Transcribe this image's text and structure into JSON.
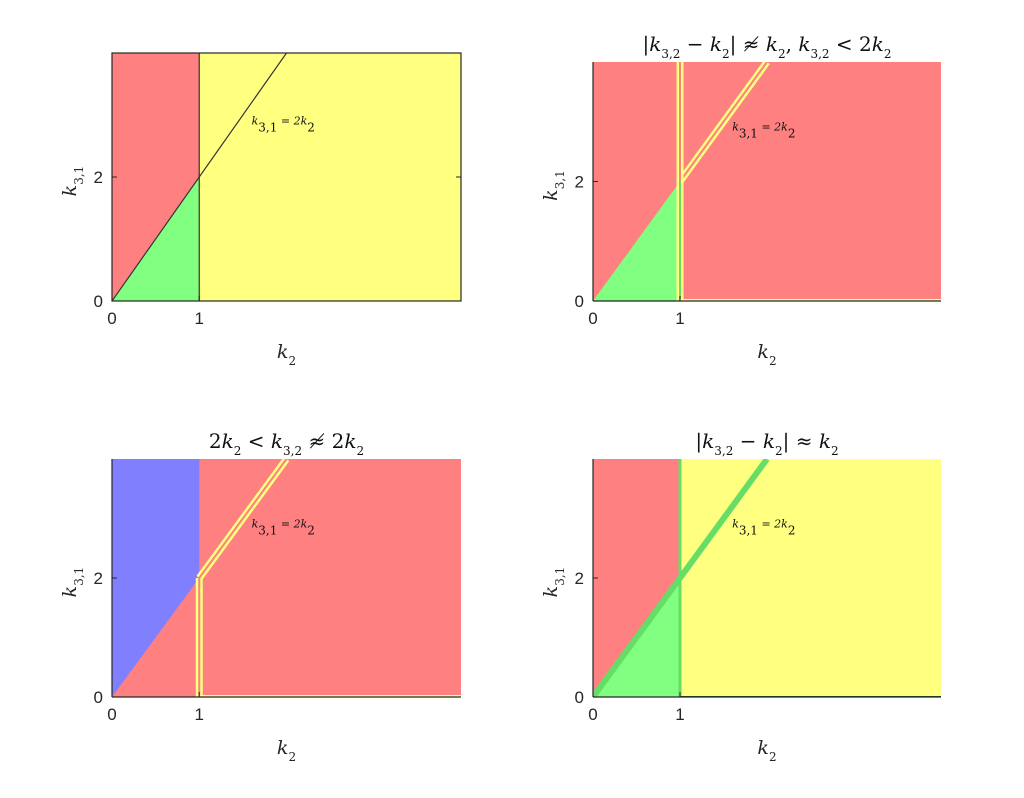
{
  "chart_data": [
    {
      "type": "area",
      "title": "",
      "xlabel": "k2",
      "ylabel": "k3,1",
      "xlim": [
        0,
        4
      ],
      "ylim": [
        0,
        4
      ],
      "xticks": [
        0,
        1
      ],
      "yticks": [
        0,
        2
      ],
      "annotation": "k3,1 = 2k2",
      "colors": {
        "red": "#ff8080",
        "green": "#80ff80",
        "yellow": "#ffff80",
        "blue": "#8080ff"
      },
      "regions": [
        {
          "color": "red",
          "polygon": [
            [
              0,
              0
            ],
            [
              1,
              2
            ],
            [
              1,
              4
            ],
            [
              0,
              4
            ]
          ]
        },
        {
          "color": "green",
          "polygon": [
            [
              0,
              0
            ],
            [
              1,
              0
            ],
            [
              1,
              2
            ]
          ]
        },
        {
          "color": "yellow",
          "polygon": [
            [
              1,
              0
            ],
            [
              4,
              0
            ],
            [
              4,
              4
            ],
            [
              1,
              4
            ]
          ]
        }
      ],
      "lines": [
        {
          "from": [
            0,
            0
          ],
          "to": [
            2,
            4
          ],
          "color": "#333333"
        },
        {
          "from": [
            1,
            0
          ],
          "to": [
            1,
            4
          ],
          "color": "#333333"
        }
      ],
      "boxed": true
    },
    {
      "type": "area",
      "title": "|k3,2 − k2| ≉ k2, k3,2 < 2k2",
      "xlabel": "k2",
      "ylabel": "k3,1",
      "xlim": [
        0,
        4
      ],
      "ylim": [
        0,
        4
      ],
      "xticks": [
        0,
        1
      ],
      "yticks": [
        0,
        2
      ],
      "annotation": "k3,1 = 2k2",
      "colors": {
        "red": "#ff8080",
        "green": "#80ff80",
        "yellow": "#ffff80",
        "blue": "#8080ff"
      },
      "regions": [
        {
          "color": "red",
          "polygon": [
            [
              0,
              0
            ],
            [
              4,
              0
            ],
            [
              4,
              4
            ],
            [
              0,
              4
            ]
          ]
        },
        {
          "color": "green",
          "polygon": [
            [
              0,
              0
            ],
            [
              1,
              0
            ],
            [
              1,
              2
            ]
          ]
        }
      ],
      "lines": [
        {
          "from": [
            1,
            2
          ],
          "to": [
            2,
            4
          ],
          "color": "#ffff80",
          "width": 7
        },
        {
          "from": [
            1,
            2
          ],
          "to": [
            2,
            4
          ],
          "color": "#ff8080",
          "width": 2
        },
        {
          "from": [
            1,
            0
          ],
          "to": [
            1,
            4
          ],
          "color": "#ffff80",
          "width": 7
        },
        {
          "from": [
            1,
            0
          ],
          "to": [
            1,
            2
          ],
          "color": "#66dd66",
          "width": 2
        },
        {
          "from": [
            1,
            2
          ],
          "to": [
            1,
            4
          ],
          "color": "#ff8080",
          "width": 2
        },
        {
          "from": [
            1,
            0
          ],
          "to": [
            4,
            0
          ],
          "color": "#ffff80",
          "width": 4
        }
      ],
      "boxed": false
    },
    {
      "type": "area",
      "title": "2k2 < k3,2 ≉ 2k2",
      "xlabel": "k2",
      "ylabel": "k3,1",
      "xlim": [
        0,
        4
      ],
      "ylim": [
        0,
        4
      ],
      "xticks": [
        0,
        1
      ],
      "yticks": [
        0,
        2
      ],
      "annotation": "k3,1 = 2k2",
      "colors": {
        "red": "#ff8080",
        "green": "#80ff80",
        "yellow": "#ffff80",
        "blue": "#8080ff"
      },
      "regions": [
        {
          "color": "red",
          "polygon": [
            [
              0,
              0
            ],
            [
              4,
              0
            ],
            [
              4,
              4
            ],
            [
              0,
              4
            ]
          ]
        },
        {
          "color": "blue",
          "polygon": [
            [
              0,
              0
            ],
            [
              1,
              2
            ],
            [
              1,
              4
            ],
            [
              0,
              4
            ]
          ]
        }
      ],
      "lines": [
        {
          "from": [
            1,
            2
          ],
          "to": [
            2,
            4
          ],
          "color": "#ffff80",
          "width": 7
        },
        {
          "from": [
            1,
            2
          ],
          "to": [
            2,
            4
          ],
          "color": "#ff8080",
          "width": 2
        },
        {
          "from": [
            1,
            0
          ],
          "to": [
            1,
            2
          ],
          "color": "#ffff80",
          "width": 7
        },
        {
          "from": [
            1,
            0
          ],
          "to": [
            1,
            2
          ],
          "color": "#ff8080",
          "width": 2
        },
        {
          "from": [
            1,
            0
          ],
          "to": [
            4,
            0
          ],
          "color": "#ffff80",
          "width": 4
        }
      ],
      "boxed": false
    },
    {
      "type": "area",
      "title": "|k3,2 − k2| ≈ k2",
      "xlabel": "k2",
      "ylabel": "k3,1",
      "xlim": [
        0,
        4
      ],
      "ylim": [
        0,
        4
      ],
      "xticks": [
        0,
        1
      ],
      "yticks": [
        0,
        2
      ],
      "annotation": "k3,1 = 2k2",
      "colors": {
        "red": "#ff8080",
        "green": "#80ff80",
        "yellow": "#ffff80",
        "blue": "#8080ff"
      },
      "regions": [
        {
          "color": "red",
          "polygon": [
            [
              0,
              0
            ],
            [
              1,
              2
            ],
            [
              1,
              4
            ],
            [
              0,
              4
            ]
          ]
        },
        {
          "color": "green",
          "polygon": [
            [
              0,
              0
            ],
            [
              1,
              0
            ],
            [
              1,
              2
            ]
          ]
        },
        {
          "color": "yellow",
          "polygon": [
            [
              1,
              0
            ],
            [
              4,
              0
            ],
            [
              4,
              4
            ],
            [
              1,
              4
            ]
          ]
        }
      ],
      "lines": [
        {
          "from": [
            0,
            0
          ],
          "to": [
            2,
            4
          ],
          "color": "#66dd66",
          "width": 6
        },
        {
          "from": [
            1,
            0
          ],
          "to": [
            1,
            4
          ],
          "color": "#66dd66",
          "width": 3
        },
        {
          "from": [
            1,
            0
          ],
          "to": [
            4,
            0
          ],
          "color": "#225522",
          "width": 2
        }
      ],
      "boxed": false
    }
  ]
}
